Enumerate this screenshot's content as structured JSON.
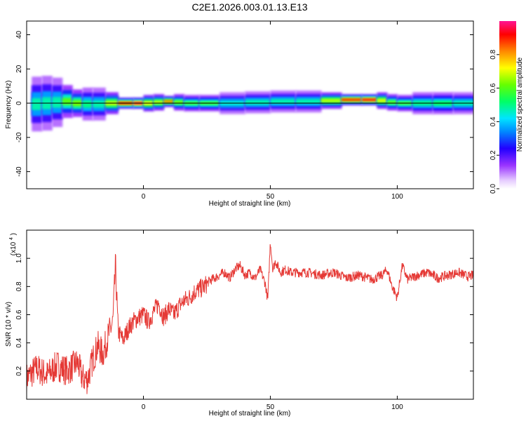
{
  "title": "C2E1.2026.003.01.13.E13",
  "chart_data": [
    {
      "type": "heatmap",
      "xlabel": "Height of straight line (km)",
      "ylabel": "Frequency (Hz)",
      "xlim": [
        -46,
        130
      ],
      "ylim": [
        -50,
        48
      ],
      "xticks": [
        "0",
        "50",
        "100"
      ],
      "yticks": [
        "-40",
        "-20",
        "0",
        "20",
        "40"
      ],
      "colorbar": {
        "label": "Normalized spectral amplitude",
        "range": [
          0,
          1
        ],
        "ticks": [
          "0.0",
          "0.2",
          "0.4",
          "0.6",
          "0.8"
        ]
      },
      "ridge": [
        {
          "x": -44,
          "f": -2,
          "amp": 0.45,
          "spread": 5
        },
        {
          "x": -40,
          "f": 1,
          "amp": 0.5,
          "spread": 5
        },
        {
          "x": -36,
          "f": -1,
          "amp": 0.45,
          "spread": 5
        },
        {
          "x": -32,
          "f": 2,
          "amp": 0.5,
          "spread": 4
        },
        {
          "x": -28,
          "f": 0,
          "amp": 0.7,
          "spread": 2
        },
        {
          "x": -24,
          "f": 0,
          "amp": 0.55,
          "spread": 3
        },
        {
          "x": -20,
          "f": -1,
          "amp": 0.45,
          "spread": 3
        },
        {
          "x": -15,
          "f": 0,
          "amp": 0.5,
          "spread": 3
        },
        {
          "x": -10,
          "f": 0,
          "amp": 0.85,
          "spread": 1
        },
        {
          "x": -4,
          "f": 0,
          "amp": 0.95,
          "spread": 1
        },
        {
          "x": 0,
          "f": 0,
          "amp": 0.95,
          "spread": 1
        },
        {
          "x": 4,
          "f": 0,
          "amp": 0.5,
          "spread": 2
        },
        {
          "x": 8,
          "f": 1,
          "amp": 0.85,
          "spread": 1
        },
        {
          "x": 12,
          "f": 1,
          "amp": 0.8,
          "spread": 1
        },
        {
          "x": 16,
          "f": 0,
          "amp": 0.45,
          "spread": 2
        },
        {
          "x": 22,
          "f": 0,
          "amp": 0.7,
          "spread": 1
        },
        {
          "x": 30,
          "f": 0,
          "amp": 0.45,
          "spread": 2
        },
        {
          "x": 40,
          "f": 0,
          "amp": 0.45,
          "spread": 2
        },
        {
          "x": 50,
          "f": 1,
          "amp": 0.5,
          "spread": 2
        },
        {
          "x": 60,
          "f": 1,
          "amp": 0.45,
          "spread": 2
        },
        {
          "x": 70,
          "f": 1,
          "amp": 0.5,
          "spread": 2
        },
        {
          "x": 78,
          "f": 2,
          "amp": 0.85,
          "spread": 1
        },
        {
          "x": 86,
          "f": 2,
          "amp": 0.95,
          "spread": 1
        },
        {
          "x": 92,
          "f": 2,
          "amp": 0.9,
          "spread": 1
        },
        {
          "x": 96,
          "f": 1,
          "amp": 0.5,
          "spread": 2
        },
        {
          "x": 100,
          "f": 0,
          "amp": 0.7,
          "spread": 1
        },
        {
          "x": 106,
          "f": 0,
          "amp": 0.45,
          "spread": 2
        },
        {
          "x": 114,
          "f": 0,
          "amp": 0.55,
          "spread": 2
        },
        {
          "x": 122,
          "f": 0,
          "amp": 0.5,
          "spread": 2
        },
        {
          "x": 130,
          "f": 0,
          "amp": 0.45,
          "spread": 2
        }
      ]
    },
    {
      "type": "line",
      "xlabel": "Height of straight line (km)",
      "ylabel": "SNR (10 * v/v)",
      "multiplier_label": "(x10",
      "multiplier_exp": "4",
      "xlim": [
        -46,
        130
      ],
      "ylim": [
        0.0,
        1.2
      ],
      "xticks": [
        "0",
        "50",
        "100"
      ],
      "yticks": [
        "0.2",
        "0.4",
        "0.6",
        "0.8",
        "1.0"
      ],
      "series": [
        {
          "color": "#e53935",
          "x": [
            -46,
            -42,
            -38,
            -34,
            -30,
            -26,
            -24,
            -22,
            -20,
            -18,
            -16,
            -14,
            -12,
            -11,
            -10,
            -8,
            -6,
            -4,
            -2,
            0,
            2,
            4,
            6,
            8,
            10,
            12,
            14,
            16,
            18,
            20,
            22,
            24,
            26,
            28,
            30,
            32,
            34,
            36,
            38,
            40,
            42,
            44,
            46,
            48,
            49,
            50,
            51,
            52,
            54,
            56,
            58,
            60,
            65,
            70,
            75,
            80,
            85,
            90,
            94,
            96,
            98,
            100,
            102,
            104,
            108,
            112,
            116,
            120,
            124,
            128,
            130
          ],
          "y": [
            0.15,
            0.22,
            0.17,
            0.24,
            0.2,
            0.26,
            0.15,
            0.14,
            0.28,
            0.38,
            0.32,
            0.44,
            0.55,
            0.95,
            0.48,
            0.42,
            0.5,
            0.55,
            0.58,
            0.6,
            0.55,
            0.62,
            0.68,
            0.58,
            0.64,
            0.6,
            0.66,
            0.7,
            0.72,
            0.76,
            0.78,
            0.8,
            0.84,
            0.86,
            0.88,
            0.9,
            0.86,
            0.92,
            0.95,
            0.88,
            0.9,
            0.86,
            0.92,
            0.82,
            0.7,
            1.12,
            0.92,
            0.98,
            0.9,
            0.92,
            0.9,
            0.9,
            0.9,
            0.88,
            0.9,
            0.86,
            0.88,
            0.85,
            0.88,
            0.92,
            0.8,
            0.72,
            0.95,
            0.85,
            0.88,
            0.9,
            0.86,
            0.88,
            0.9,
            0.87,
            0.88
          ]
        }
      ]
    }
  ]
}
